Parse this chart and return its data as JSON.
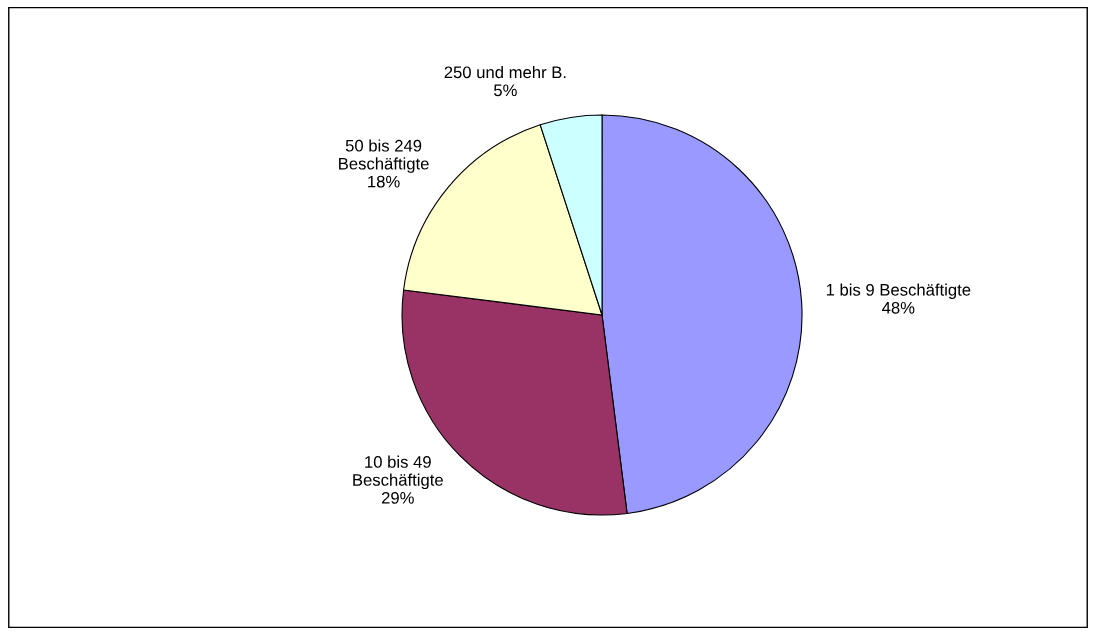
{
  "chart_data": {
    "type": "pie",
    "categories": [
      "1 bis 9 Beschäftigte",
      "10 bis 49\nBeschäftigte",
      "50 bis 249\nBeschäftigte",
      "250 und mehr B."
    ],
    "values": [
      48,
      29,
      18,
      5
    ],
    "value_labels": [
      "48%",
      "29%",
      "18%",
      "5%"
    ],
    "colors": [
      "#9999ff",
      "#993366",
      "#ffffcc",
      "#ccffff"
    ]
  }
}
